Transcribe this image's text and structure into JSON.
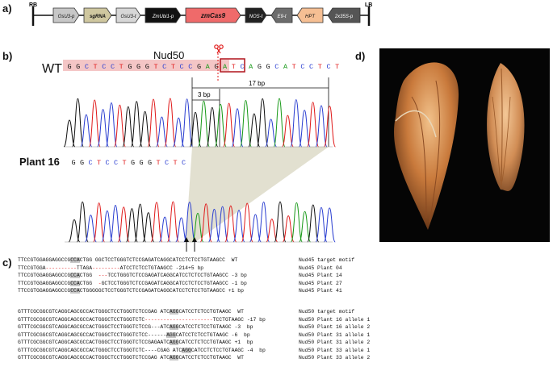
{
  "panel_labels": {
    "a": "a)",
    "b": "b)",
    "c": "c)",
    "d": "d)"
  },
  "construct": {
    "rb": "RB",
    "lb": "LB",
    "elements": [
      {
        "label": "OsU3-p",
        "color": "#c7c7c7"
      },
      {
        "label": "sgRNA",
        "color": "#cfc79f"
      },
      {
        "label": "OsU3-t",
        "color": "#d7d7d7"
      },
      {
        "label": "ZmUbi1-p",
        "color": "#111111"
      },
      {
        "label": "zmCas9",
        "color": "#ef6a6a"
      },
      {
        "label": "NOS-t",
        "color": "#222222"
      },
      {
        "label": "E9-t",
        "color": "#6c6c6c"
      },
      {
        "label": "HPT",
        "color": "#f6bf93"
      },
      {
        "label": "2x35S-p",
        "color": "#555555"
      }
    ]
  },
  "panel_b": {
    "gene": "Nud50",
    "wt_label": "WT",
    "wt_sequence": [
      "G",
      "G",
      "C",
      "T",
      "C",
      "C",
      "T",
      "G",
      "G",
      "G",
      "T",
      "C",
      "T",
      "C",
      "C",
      "G",
      "A",
      "G",
      "A",
      "T",
      "C",
      "A",
      "G",
      "G",
      "C",
      "A",
      "T",
      "C",
      "C",
      "T",
      "C",
      "T"
    ],
    "plant_label": "Plant 16",
    "plant_sequence": [
      "G",
      "G",
      "C",
      "T",
      "C",
      "C",
      "T",
      "G",
      "G",
      "G",
      "T",
      "C",
      "T",
      "C"
    ],
    "bp3": "3 bp",
    "bp17": "17 bp",
    "base_colors": {
      "A": "#1a9a1a",
      "C": "#2b3fd1",
      "G": "#111111",
      "T": "#e01b1b"
    }
  },
  "panel_c": {
    "nud45": [
      {
        "seq": "TTCCGTGGAGGAGGCCG",
        "hl": "CCA",
        "rest": "CTGG GGCTCCTGGGTCTCCGAGATCAGGCATCCTCTCCTGTAAGCC",
        "suffix": "  WT",
        "label": "Nud45 target motif"
      },
      {
        "seq": "TTCCGTGGA",
        "hl": "",
        "rest": "----------TTAGA---------ATCCTCTCCTGTAAGCC",
        "suffix": " -214+5 bp",
        "label": "Nud45 Plant 04"
      },
      {
        "seq": "TTCCGTGGAGGAGGCCG",
        "hl": "CCA",
        "rest": "CTGG  ---TCCTGGGTCTCCGAGATCAGGCATCCTCTCCTGTAAGCC",
        "suffix": " -3 bp",
        "label": "Nud45 Plant 14"
      },
      {
        "seq": "TTCCGTGGAGGAGGCCG",
        "hl": "CCA",
        "rest": "CTGG  -GCTCCTGGGTCTCCGAGATCAGGCATCCTCTCCTGTAAGCC",
        "suffix": " -1 bp",
        "label": "Nud45 Plant 27"
      },
      {
        "seq": "TTCCGTGGAGGAGGCCG",
        "hl": "CCA",
        "rest": "CTGGGGGCTCCTGGGTCTCCGAGATCAGGCATCCTCTCCTGTAAGCC",
        "suffix": " +1 bp",
        "label": "Nud45 Plant 41"
      }
    ],
    "nud50": [
      {
        "seq": "GTTTCGCGGCGTCAGGCAGCGCCACTGGGCTCCTGGGTCTCCGAG ATC",
        "hl": "AGG",
        "rest": "CATCCTCTCCTGTAAGC",
        "suffix": "  WT",
        "label": "Nud50 target motif"
      },
      {
        "seq": "GTTTCGCGGCGTCAGGCAGCGCCACTGGGCTCCTGGGTCTC",
        "hl": "",
        "rest": "----------------------TCCTGTAAGC",
        "suffix": " -17 bp",
        "label": "Nud50 Plant 16 allele 1"
      },
      {
        "seq": "GTTTCGCGGCGTCAGGCAGCGCCACTGGGCTCCTGGGTCTCCG---ATC",
        "hl": "AGG",
        "rest": "CATCCTCTCCTGTAAGC",
        "suffix": " -3  bp",
        "label": "Nud50 Plant 16 allele 2"
      },
      {
        "seq": "GTTTCGCGGCGTCAGGCAGCGCCACTGGGCTCCTGGGTCTCC------",
        "hl": "AGG",
        "rest": "CATCCTCTCCTGTAAGC",
        "suffix": " -6  bp",
        "label": "Nud50 Plant 31 allele 1"
      },
      {
        "seq": "GTTTCGCGGCGTCAGGCAGCGCCACTGGGCTCCTGGGTCTCCGAGAATC",
        "hl": "AGG",
        "rest": "CATCCTCTCCTGTAAGC",
        "suffix": " +1  bp",
        "label": "Nud50 Plant 31 allele 2"
      },
      {
        "seq": "GTTTCGCGGCGTCAGGCAGCGCCACTGGGCTCCTGGGTCTC----CGAG ATC",
        "hl": "AGG",
        "rest": "CATCCTCTCCTGTAAGC",
        "suffix": " -4  bp",
        "label": "Nud50 Plant 33 allele 1"
      },
      {
        "seq": "GTTTCGCGGCGTCAGGCAGCGCCACTGGGCTCCTGGGTCTCCGAG ATC",
        "hl": "AGG",
        "rest": "CATCCTCTCCTGTAAGC",
        "suffix": "  WT",
        "label": "Nud50 Plant 33 allele 2"
      }
    ]
  }
}
